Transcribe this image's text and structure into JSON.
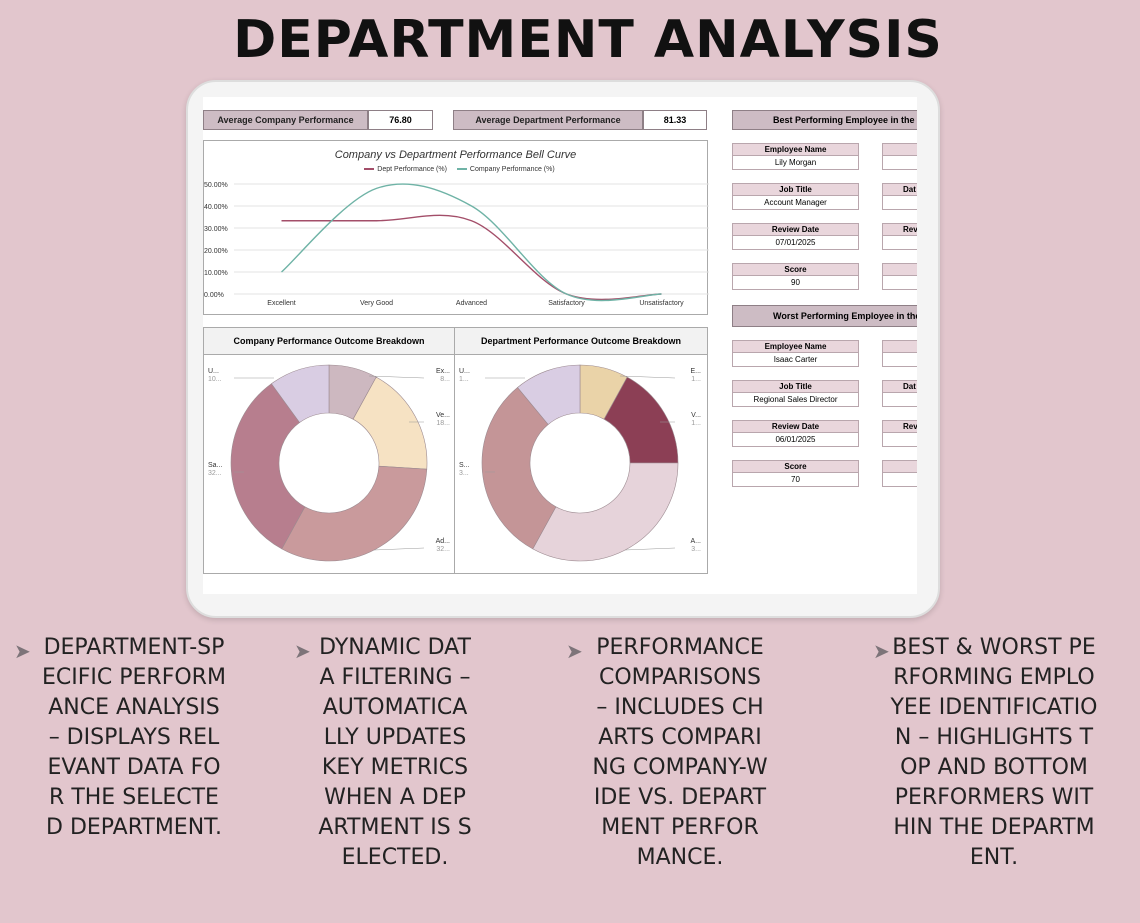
{
  "title": "DEPARTMENT ANALYSIS",
  "kpis": {
    "company_label": "Average Company Performance",
    "company_value": "76.80",
    "dept_label": "Average Department Performance",
    "dept_value": "81.33"
  },
  "bell_curve": {
    "title": "Company vs Department Performance Bell Curve",
    "legend_dept": "Dept Performance (%)",
    "legend_company": "Company Performance (%)",
    "y_ticks": [
      "50.00%",
      "40.00%",
      "30.00%",
      "20.00%",
      "10.00%",
      "0.00%"
    ]
  },
  "donut_company": {
    "title": "Company Performance Outcome Breakdown",
    "labels": [
      {
        "name": "U...",
        "value": "10..."
      },
      {
        "name": "Ex...",
        "value": "8..."
      },
      {
        "name": "Ve...",
        "value": "18..."
      },
      {
        "name": "Sa...",
        "value": "32..."
      },
      {
        "name": "Ad...",
        "value": "32..."
      }
    ]
  },
  "donut_dept": {
    "title": "Department Performance Outcome Breakdown",
    "labels": [
      {
        "name": "U...",
        "value": "1..."
      },
      {
        "name": "E...",
        "value": "1..."
      },
      {
        "name": "V...",
        "value": "1..."
      },
      {
        "name": "S...",
        "value": "3..."
      },
      {
        "name": "A...",
        "value": "3..."
      }
    ]
  },
  "best_employee": {
    "heading": "Best Performing Employee in the",
    "name_label": "Employee Name",
    "name": "Lily Morgan",
    "job_label": "Job Title",
    "job": "Account Manager",
    "date_label": "Review Date",
    "date": "07/01/2025",
    "score_label": "Score",
    "score": "90",
    "ghost_labels": [
      "",
      "Dat",
      "Rev",
      ""
    ]
  },
  "worst_employee": {
    "heading": "Worst Performing Employee in the",
    "name_label": "Employee Name",
    "name": "Isaac Carter",
    "job_label": "Job Title",
    "job": "Regional Sales Director",
    "date_label": "Review Date",
    "date": "06/01/2025",
    "score_label": "Score",
    "score": "70",
    "ghost_labels": [
      "",
      "Dat",
      "Rev",
      ""
    ]
  },
  "features": [
    {
      "text": "DEPARTMENT-SPECIFIC PERFORMANCE ANALYSIS – DISPLAYS RELEVANT DATA FOR THE SELECTED DEPARTMENT."
    },
    {
      "text": "DYNAMIC DATA FILTERING – AUTOMATICALLY UPDATES KEY METRICS WHEN A DEPARTMENT IS SELECTED."
    },
    {
      "text": "PERFORMANCE COMPARISONS – INCLUDES CHARTS COMPARING COMPANY-WIDE VS. DEPARTMENT PERFORMANCE."
    },
    {
      "text": "BEST & WORST PERFORMING EMPLOYEE IDENTIFICATION – HIGHLIGHTS TOP AND BOTTOM PERFORMERS WITHIN THE DEPARTMENT."
    }
  ],
  "colors": {
    "dept_line": "#a34e69",
    "company_line": "#6fb3a6",
    "background": "#e2c6cd"
  },
  "chart_data": [
    {
      "type": "line",
      "title": "Company vs Department Performance Bell Curve",
      "categories": [
        "Excellent",
        "Very Good",
        "Advanced",
        "Satisfactory",
        "Unsatisfactory"
      ],
      "series": [
        {
          "name": "Dept Performance (%)",
          "values": [
            33.3,
            33.3,
            33.3,
            0,
            0
          ]
        },
        {
          "name": "Company Performance (%)",
          "values": [
            10,
            48,
            40,
            0,
            0
          ]
        }
      ],
      "ylim": [
        0,
        50
      ],
      "grid": true,
      "legend": "top"
    },
    {
      "type": "pie",
      "title": "Company Performance Outcome Breakdown",
      "categories": [
        "Excellent",
        "Very Good",
        "Advanced",
        "Satisfactory",
        "Unsatisfactory"
      ],
      "values": [
        8,
        18,
        32,
        32,
        10
      ],
      "colors": [
        "#cdb8c0",
        "#f6e2c3",
        "#c99a9c",
        "#b77e8e",
        "#d9cde3"
      ]
    },
    {
      "type": "pie",
      "title": "Department Performance Outcome Breakdown",
      "categories": [
        "Excellent",
        "Very Good",
        "Advanced",
        "Satisfactory",
        "Unsatisfactory"
      ],
      "values": [
        8,
        17,
        33,
        31,
        11
      ],
      "colors": [
        "#ead3a8",
        "#8c3f55",
        "#e6d3da",
        "#c49597",
        "#d9cde3"
      ]
    }
  ]
}
